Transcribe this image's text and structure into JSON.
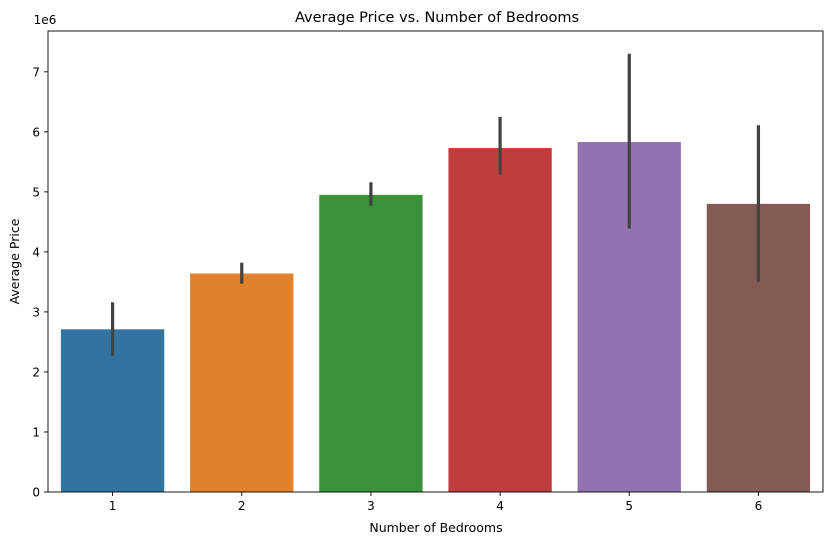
{
  "chart_data": {
    "type": "bar",
    "title": "Average Price vs. Number of Bedrooms",
    "xlabel": "Number of Bedrooms",
    "ylabel": "Average Price",
    "y_offset_label": "1e6",
    "y_scale": 1000000,
    "categories": [
      "1",
      "2",
      "3",
      "4",
      "5",
      "6"
    ],
    "values": [
      2710000,
      3640000,
      4950000,
      5730000,
      5830000,
      4800000
    ],
    "error_low": [
      2270000,
      3470000,
      4770000,
      5290000,
      4390000,
      3500000
    ],
    "error_high": [
      3160000,
      3820000,
      5160000,
      6250000,
      7300000,
      6110000
    ],
    "colors": [
      "#3274a1",
      "#e1812c",
      "#3a923a",
      "#c03d3e",
      "#9372b2",
      "#845b53"
    ],
    "error_color": "#424242",
    "ylim": [
      0,
      7680000
    ],
    "yticks": [
      0,
      1,
      2,
      3,
      4,
      5,
      6,
      7
    ],
    "grid": false,
    "legend": "none"
  }
}
